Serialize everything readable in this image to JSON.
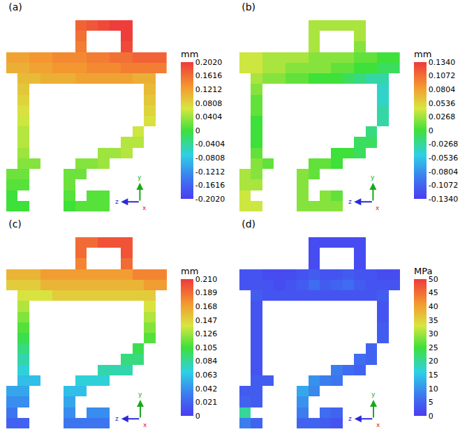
{
  "chart_data": [
    {
      "type": "heatmap",
      "title": "(a)",
      "annotations": [
        "y",
        "z",
        "x"
      ],
      "tick_labels": false,
      "colorbar": {
        "title": "mm",
        "range": [
          -0.202,
          0.202
        ],
        "ticks": [
          {
            "value": 0.202,
            "label": "0.2020"
          },
          0.1616,
          0.1212,
          0.0808,
          0.0404,
          0,
          -0.0404,
          -0.0808,
          -0.1212,
          -0.1616,
          {
            "value": -0.202,
            "label": "-0.2020"
          }
        ]
      },
      "z": [
        [
          null,
          null,
          null,
          null,
          null,
          null,
          0.17,
          0.18,
          0.19,
          0.2,
          0.2,
          null,
          null,
          null
        ],
        [
          null,
          null,
          null,
          null,
          null,
          null,
          0.16,
          null,
          null,
          null,
          0.2,
          null,
          null,
          null
        ],
        [
          null,
          null,
          null,
          null,
          null,
          null,
          0.15,
          null,
          null,
          null,
          0.19,
          null,
          null,
          null
        ],
        [
          0.12,
          0.12,
          0.13,
          0.13,
          0.14,
          0.14,
          0.14,
          0.15,
          0.15,
          0.16,
          0.16,
          0.17,
          0.17,
          0.17
        ],
        [
          0.11,
          0.11,
          0.12,
          0.12,
          0.13,
          0.13,
          0.13,
          0.14,
          0.14,
          0.14,
          0.15,
          0.15,
          0.15,
          0.15
        ],
        [
          null,
          0.1,
          0.1,
          0.11,
          0.11,
          0.11,
          0.12,
          0.12,
          0.12,
          0.12,
          0.12,
          0.11,
          0.11,
          null
        ],
        [
          null,
          0.09,
          null,
          null,
          null,
          null,
          null,
          null,
          null,
          null,
          null,
          null,
          0.1,
          null
        ],
        [
          null,
          0.08,
          null,
          null,
          null,
          null,
          null,
          null,
          null,
          null,
          null,
          null,
          0.09,
          null
        ],
        [
          null,
          0.07,
          null,
          null,
          null,
          null,
          null,
          null,
          null,
          null,
          null,
          null,
          0.08,
          null
        ],
        [
          null,
          0.06,
          null,
          null,
          null,
          null,
          null,
          null,
          null,
          null,
          null,
          null,
          0.07,
          null
        ],
        [
          null,
          0.05,
          null,
          null,
          null,
          null,
          null,
          null,
          null,
          null,
          null,
          0.06,
          null,
          null
        ],
        [
          null,
          0.05,
          null,
          null,
          null,
          null,
          null,
          null,
          null,
          null,
          0.05,
          0.05,
          null,
          null
        ],
        [
          null,
          0.04,
          null,
          null,
          null,
          null,
          null,
          null,
          0.04,
          0.04,
          0.05,
          null,
          null,
          null
        ],
        [
          null,
          0.03,
          0.03,
          null,
          null,
          null,
          0.03,
          0.03,
          0.04,
          null,
          null,
          null,
          null,
          null
        ],
        [
          0.02,
          0.02,
          null,
          null,
          null,
          0.02,
          0.02,
          null,
          null,
          null,
          null,
          null,
          null,
          null
        ],
        [
          0.01,
          0.01,
          null,
          null,
          null,
          0.02,
          null,
          null,
          null,
          null,
          null,
          null,
          null,
          null
        ],
        [
          0,
          null,
          null,
          null,
          null,
          0.01,
          null,
          0.01,
          0.01,
          null,
          null,
          null,
          null,
          null
        ],
        [
          0,
          0,
          null,
          null,
          null,
          0,
          0.01,
          0.01,
          0.01,
          null,
          null,
          null,
          null,
          null
        ]
      ]
    },
    {
      "type": "heatmap",
      "title": "(b)",
      "annotations": [
        "y",
        "z",
        "x"
      ],
      "tick_labels": false,
      "colorbar": {
        "title": "mm",
        "range": [
          -0.134,
          0.134
        ],
        "ticks": [
          {
            "value": 0.134,
            "label": "0.1340"
          },
          0.1072,
          0.0804,
          0.0536,
          0.0268,
          0,
          -0.0268,
          -0.0536,
          -0.0804,
          -0.1072,
          {
            "value": -0.134,
            "label": "-0.1340"
          }
        ]
      },
      "z": [
        [
          null,
          null,
          null,
          null,
          null,
          null,
          0.03,
          0.03,
          0.03,
          0.03,
          0.03,
          null,
          null,
          null
        ],
        [
          null,
          null,
          null,
          null,
          null,
          null,
          0.03,
          null,
          null,
          null,
          0.03,
          null,
          null,
          null
        ],
        [
          null,
          null,
          null,
          null,
          null,
          null,
          0.03,
          null,
          null,
          null,
          0.02,
          null,
          null,
          null
        ],
        [
          0.04,
          0.04,
          0.03,
          0.03,
          0.03,
          0.03,
          0.02,
          0.02,
          0.02,
          0.02,
          0.01,
          0.01,
          0,
          0
        ],
        [
          0.04,
          0.04,
          0.03,
          0.03,
          0.02,
          0.02,
          0.02,
          0.02,
          0.01,
          0.01,
          0,
          0,
          -0.01,
          -0.01
        ],
        [
          null,
          0.03,
          0.02,
          0.02,
          0.01,
          0.01,
          0,
          0,
          0,
          -0.01,
          -0.02,
          -0.03,
          -0.03,
          null
        ],
        [
          null,
          0.02,
          null,
          null,
          null,
          null,
          null,
          null,
          null,
          null,
          null,
          null,
          -0.04,
          null
        ],
        [
          null,
          0.01,
          null,
          null,
          null,
          null,
          null,
          null,
          null,
          null,
          null,
          null,
          -0.04,
          null
        ],
        [
          null,
          0.01,
          null,
          null,
          null,
          null,
          null,
          null,
          null,
          null,
          null,
          null,
          -0.03,
          null
        ],
        [
          null,
          0,
          null,
          null,
          null,
          null,
          null,
          null,
          null,
          null,
          null,
          null,
          -0.03,
          null
        ],
        [
          null,
          0,
          null,
          null,
          null,
          null,
          null,
          null,
          null,
          null,
          null,
          -0.02,
          null,
          null
        ],
        [
          null,
          0,
          null,
          null,
          null,
          null,
          null,
          null,
          null,
          null,
          -0.01,
          -0.01,
          null,
          null
        ],
        [
          null,
          0.01,
          null,
          null,
          null,
          null,
          null,
          null,
          0,
          0,
          -0.01,
          null,
          null,
          null
        ],
        [
          null,
          0.02,
          0.01,
          null,
          null,
          null,
          0.01,
          0.01,
          0,
          null,
          null,
          null,
          null,
          null
        ],
        [
          0.03,
          0.02,
          null,
          null,
          null,
          0.02,
          0.01,
          null,
          null,
          null,
          null,
          null,
          null,
          null
        ],
        [
          0.03,
          0.03,
          null,
          null,
          null,
          0.02,
          null,
          null,
          null,
          null,
          null,
          null,
          null,
          null
        ],
        [
          0.04,
          null,
          null,
          null,
          null,
          0.02,
          null,
          0.02,
          0.01,
          null,
          null,
          null,
          null,
          null
        ],
        [
          0.04,
          0.04,
          null,
          null,
          null,
          0.02,
          0.02,
          0.02,
          0.02,
          null,
          null,
          null,
          null,
          null
        ]
      ]
    },
    {
      "type": "heatmap",
      "title": "(c)",
      "annotations": [
        "y",
        "z",
        "x"
      ],
      "tick_labels": false,
      "colorbar": {
        "title": "mm",
        "range": [
          0,
          0.21
        ],
        "ticks": [
          {
            "value": 0.21,
            "label": "0.210"
          },
          0.189,
          0.168,
          0.147,
          0.126,
          0.105,
          0.084,
          0.063,
          0.042,
          0.021,
          0
        ]
      },
      "z": [
        [
          null,
          null,
          null,
          null,
          null,
          null,
          0.19,
          0.19,
          0.2,
          0.2,
          0.2,
          null,
          null,
          null
        ],
        [
          null,
          null,
          null,
          null,
          null,
          null,
          0.19,
          null,
          null,
          null,
          0.2,
          null,
          null,
          null
        ],
        [
          null,
          null,
          null,
          null,
          null,
          null,
          0.18,
          null,
          null,
          null,
          0.19,
          null,
          null,
          null
        ],
        [
          0.16,
          0.16,
          0.16,
          0.17,
          0.17,
          0.17,
          0.17,
          0.17,
          0.17,
          0.17,
          0.17,
          0.18,
          0.18,
          0.18
        ],
        [
          0.15,
          0.15,
          0.15,
          0.16,
          0.16,
          0.16,
          0.16,
          0.16,
          0.16,
          0.16,
          0.16,
          0.16,
          0.17,
          0.17
        ],
        [
          null,
          0.14,
          0.14,
          0.14,
          0.15,
          0.15,
          0.15,
          0.15,
          0.15,
          0.15,
          0.15,
          0.15,
          0.15,
          null
        ],
        [
          null,
          0.13,
          null,
          null,
          null,
          null,
          null,
          null,
          null,
          null,
          null,
          null,
          0.14,
          null
        ],
        [
          null,
          0.12,
          null,
          null,
          null,
          null,
          null,
          null,
          null,
          null,
          null,
          null,
          0.13,
          null
        ],
        [
          null,
          0.11,
          null,
          null,
          null,
          null,
          null,
          null,
          null,
          null,
          null,
          null,
          0.12,
          null
        ],
        [
          null,
          0.1,
          null,
          null,
          null,
          null,
          null,
          null,
          null,
          null,
          null,
          null,
          0.11,
          null
        ],
        [
          null,
          0.09,
          null,
          null,
          null,
          null,
          null,
          null,
          null,
          null,
          null,
          0.1,
          null,
          null
        ],
        [
          null,
          0.08,
          null,
          null,
          null,
          null,
          null,
          null,
          null,
          null,
          0.09,
          0.09,
          null,
          null
        ],
        [
          null,
          0.07,
          null,
          null,
          null,
          null,
          null,
          null,
          0.08,
          0.08,
          0.08,
          null,
          null,
          null
        ],
        [
          null,
          0.06,
          0.06,
          null,
          null,
          null,
          0.07,
          0.07,
          0.07,
          null,
          null,
          null,
          null,
          null
        ],
        [
          0.05,
          0.05,
          null,
          null,
          null,
          0.06,
          0.06,
          null,
          null,
          null,
          null,
          null,
          null,
          null
        ],
        [
          0.04,
          0.04,
          null,
          null,
          null,
          0.05,
          null,
          null,
          null,
          null,
          null,
          null,
          null,
          null
        ],
        [
          0.03,
          null,
          null,
          null,
          null,
          0.04,
          null,
          0.04,
          0.04,
          null,
          null,
          null,
          null,
          null
        ],
        [
          0.02,
          0.02,
          null,
          null,
          null,
          0.03,
          0.03,
          0.03,
          0.03,
          null,
          null,
          null,
          null,
          null
        ]
      ]
    },
    {
      "type": "heatmap",
      "title": "(d)",
      "annotations": [
        "y",
        "z",
        "x"
      ],
      "tick_labels": false,
      "colorbar": {
        "title": "MPa",
        "range": [
          0,
          50
        ],
        "ticks": [
          0,
          5,
          10,
          15,
          20,
          25,
          30,
          35,
          40,
          45,
          50
        ]
      },
      "z": [
        [
          null,
          null,
          null,
          null,
          null,
          null,
          2,
          2,
          2,
          2,
          2,
          null,
          null,
          null
        ],
        [
          null,
          null,
          null,
          null,
          null,
          null,
          2,
          null,
          null,
          null,
          2,
          null,
          null,
          null
        ],
        [
          null,
          null,
          null,
          null,
          null,
          null,
          2,
          null,
          null,
          null,
          2,
          null,
          null,
          null
        ],
        [
          3,
          3,
          2,
          2,
          2,
          3,
          4,
          3,
          3,
          4,
          3,
          3,
          2,
          2
        ],
        [
          3,
          3,
          3,
          2,
          3,
          4,
          6,
          4,
          5,
          6,
          4,
          3,
          3,
          3
        ],
        [
          null,
          4,
          3,
          3,
          3,
          3,
          3,
          3,
          3,
          3,
          3,
          3,
          4,
          null
        ],
        [
          null,
          3,
          null,
          null,
          null,
          null,
          null,
          null,
          null,
          null,
          null,
          null,
          3,
          null
        ],
        [
          null,
          3,
          null,
          null,
          null,
          null,
          null,
          null,
          null,
          null,
          null,
          null,
          3,
          null
        ],
        [
          null,
          3,
          null,
          null,
          null,
          null,
          null,
          null,
          null,
          null,
          null,
          null,
          4,
          null
        ],
        [
          null,
          3,
          null,
          null,
          null,
          null,
          null,
          null,
          null,
          null,
          null,
          null,
          4,
          null
        ],
        [
          null,
          3,
          null,
          null,
          null,
          null,
          null,
          null,
          null,
          null,
          null,
          5,
          null,
          null
        ],
        [
          null,
          3,
          null,
          null,
          null,
          null,
          null,
          null,
          null,
          null,
          6,
          5,
          null,
          null
        ],
        [
          null,
          3,
          null,
          null,
          null,
          null,
          null,
          null,
          8,
          6,
          5,
          null,
          null,
          null
        ],
        [
          null,
          4,
          4,
          null,
          null,
          null,
          10,
          8,
          7,
          null,
          null,
          null,
          null,
          null
        ],
        [
          4,
          4,
          null,
          null,
          null,
          12,
          9,
          null,
          null,
          null,
          null,
          null,
          null,
          null
        ],
        [
          5,
          4,
          null,
          null,
          null,
          10,
          null,
          null,
          null,
          null,
          null,
          null,
          null,
          null
        ],
        [
          20,
          null,
          null,
          null,
          null,
          8,
          null,
          6,
          5,
          null,
          null,
          null,
          null,
          null
        ],
        [
          8,
          5,
          null,
          null,
          null,
          5,
          5,
          4,
          3,
          null,
          null,
          null,
          null,
          null
        ]
      ]
    }
  ]
}
